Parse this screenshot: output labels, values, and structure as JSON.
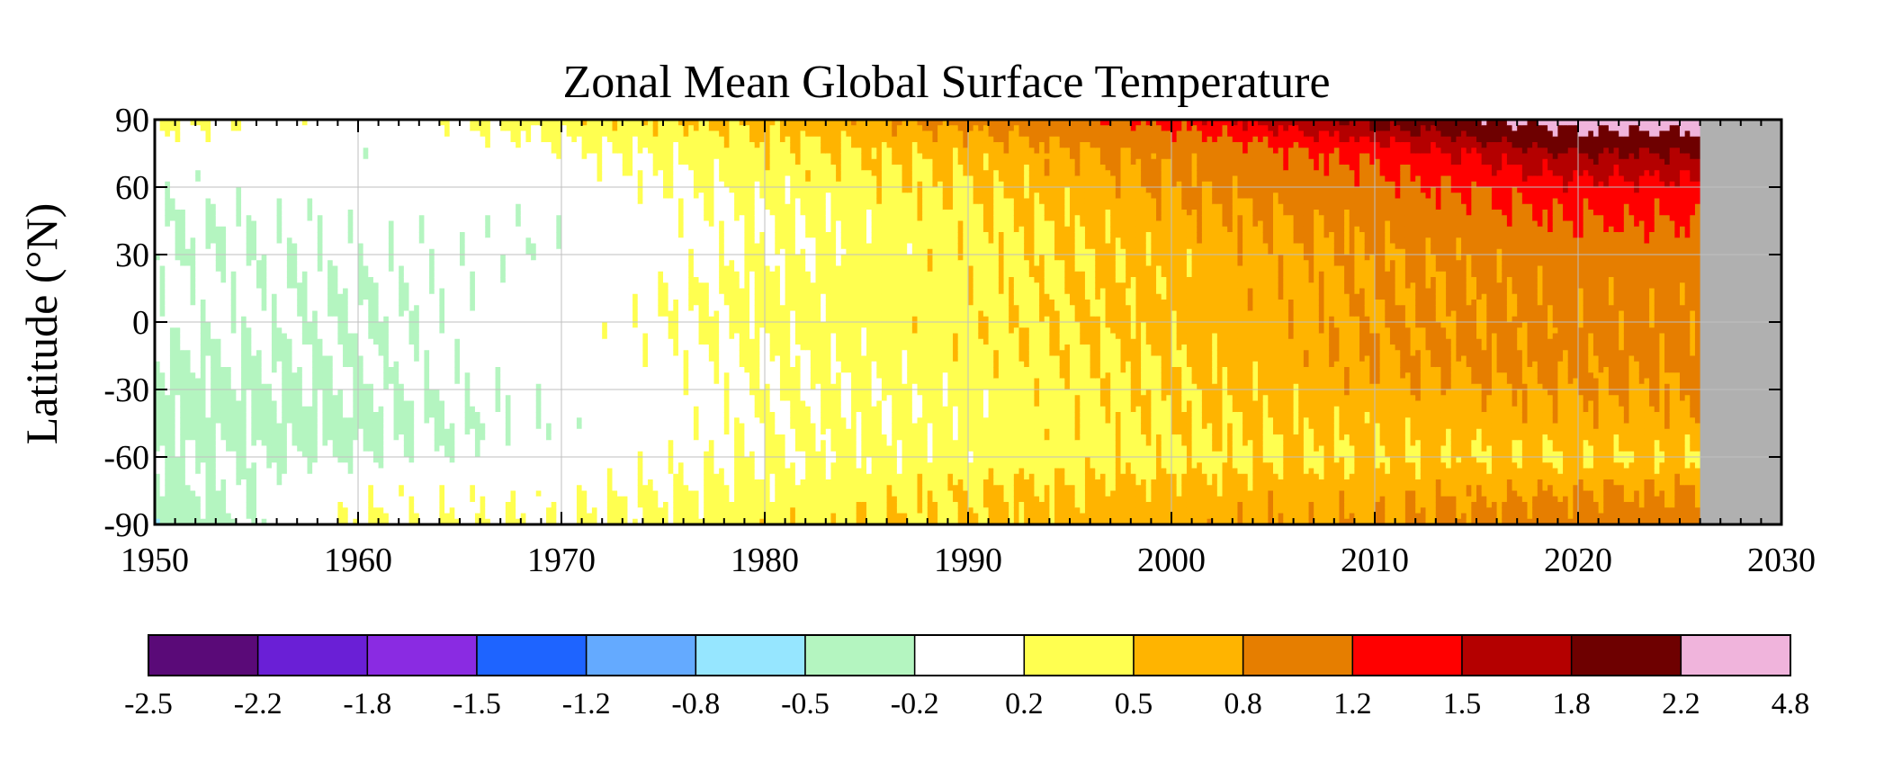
{
  "chart_data": {
    "type": "heatmap",
    "title": "Zonal Mean Global Surface Temperature",
    "xlabel": "",
    "ylabel": "Latitude (°N)",
    "xlim": [
      1950,
      2030
    ],
    "ylim": [
      -90,
      90
    ],
    "x_ticks": [
      "1950",
      "1960",
      "1970",
      "1980",
      "1990",
      "2000",
      "2010",
      "2020",
      "2030"
    ],
    "y_ticks": [
      "90",
      "60",
      "30",
      "0",
      "-30",
      "-60",
      "-90"
    ],
    "y_tick_values": [
      90,
      60,
      30,
      0,
      -30,
      -60,
      -90
    ],
    "data_end_year": 2026,
    "no_data_color": "#b0b0b0",
    "colorbar": {
      "levels": [
        "-2.5",
        "-2.2",
        "-1.8",
        "-1.5",
        "-1.2",
        "-0.8",
        "-0.5",
        "-0.2",
        "0.2",
        "0.5",
        "0.8",
        "1.2",
        "1.5",
        "1.8",
        "2.2",
        "4.8"
      ],
      "colors": [
        "#5a0a78",
        "#6a1fd6",
        "#8a2be2",
        "#1e64ff",
        "#64aaff",
        "#96e6ff",
        "#b4f5c0",
        "#ffffff",
        "#ffff50",
        "#ffb400",
        "#e67e00",
        "#ff0000",
        "#b40000",
        "#6e0000",
        "#f0b4dc"
      ]
    },
    "latitude_bands": [
      90,
      75,
      60,
      45,
      30,
      15,
      0,
      -15,
      -30,
      -45,
      -60,
      -75,
      -90
    ],
    "decades": [
      1950,
      1960,
      1970,
      1980,
      1990,
      2000,
      2010,
      2020
    ],
    "anomaly_by_decade_band": [
      [
        0.3,
        0.0,
        0.4,
        0.6,
        0.9,
        1.3,
        1.9,
        2.4
      ],
      [
        0.0,
        -0.1,
        0.1,
        0.4,
        0.6,
        0.9,
        1.3,
        1.8
      ],
      [
        -0.1,
        0.0,
        0.0,
        0.3,
        0.5,
        0.8,
        1.1,
        1.4
      ],
      [
        -0.2,
        -0.1,
        -0.1,
        0.2,
        0.4,
        0.7,
        0.9,
        1.2
      ],
      [
        -0.2,
        -0.1,
        -0.1,
        0.2,
        0.4,
        0.6,
        0.8,
        1.0
      ],
      [
        -0.1,
        -0.2,
        0.0,
        0.3,
        0.4,
        0.6,
        0.8,
        0.9
      ],
      [
        -0.1,
        -0.2,
        0.0,
        0.3,
        0.4,
        0.6,
        0.8,
        0.9
      ],
      [
        -0.2,
        -0.2,
        0.0,
        0.2,
        0.4,
        0.5,
        0.8,
        0.9
      ],
      [
        -0.3,
        -0.2,
        -0.1,
        0.2,
        0.3,
        0.5,
        0.7,
        0.8
      ],
      [
        -0.3,
        -0.3,
        -0.1,
        0.2,
        0.3,
        0.5,
        0.6,
        0.7
      ],
      [
        -0.2,
        -0.2,
        0.0,
        0.2,
        0.3,
        0.4,
        0.5,
        0.5
      ],
      [
        -0.3,
        0.1,
        0.1,
        0.3,
        0.5,
        0.6,
        0.7,
        0.8
      ],
      [
        -0.5,
        0.2,
        0.2,
        0.4,
        0.5,
        0.7,
        0.8,
        1.0
      ]
    ]
  }
}
